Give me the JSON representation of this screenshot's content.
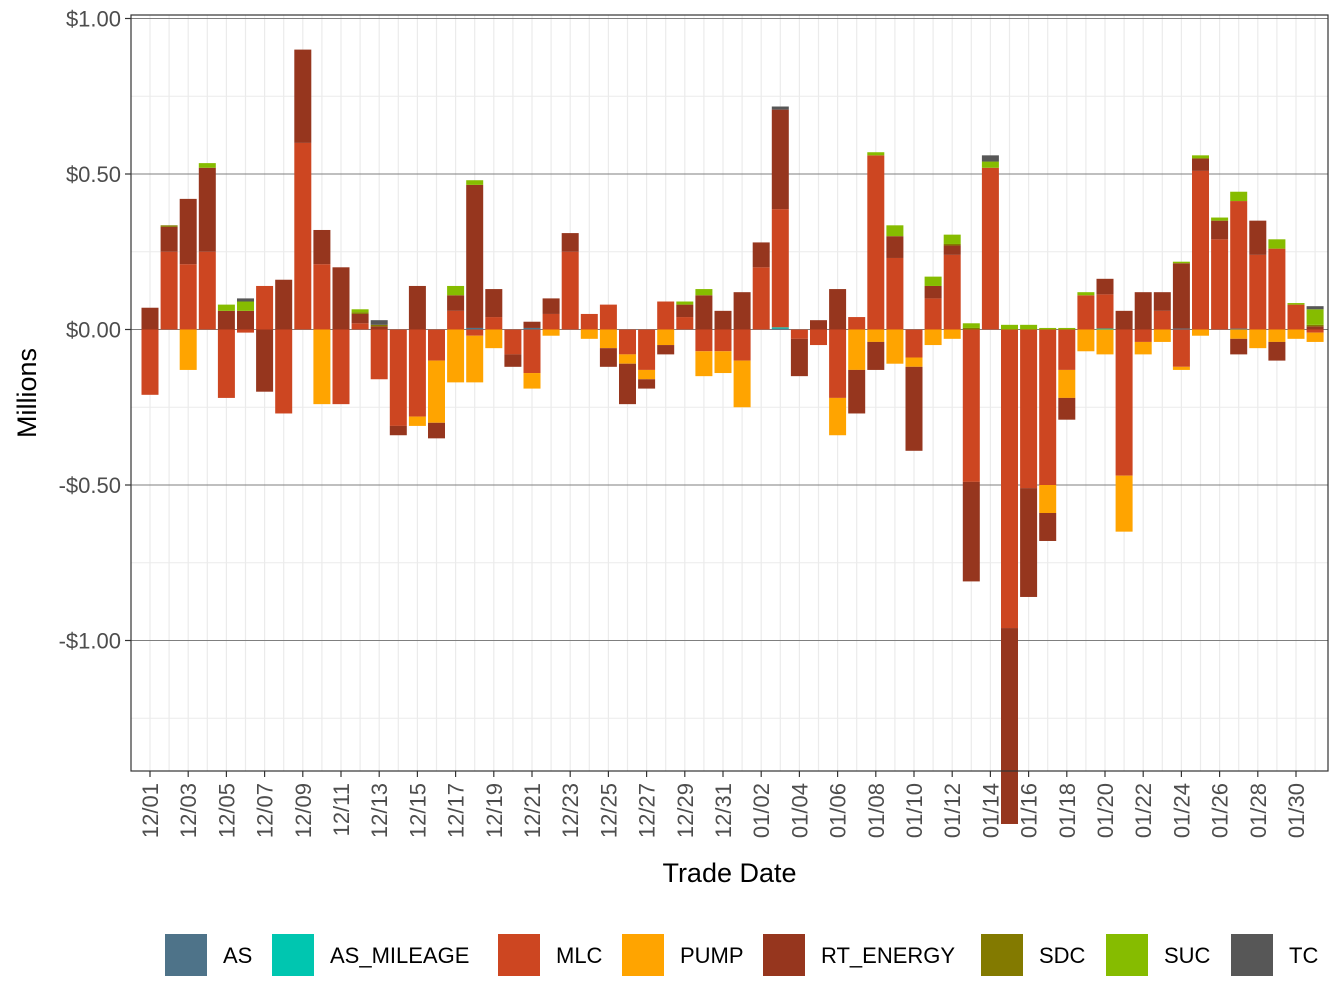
{
  "chart_data": {
    "type": "bar",
    "stacked": true,
    "title": "",
    "xlabel": "Trade Date",
    "ylabel": "Millions",
    "ylim": [
      -1.42,
      1.0
    ],
    "y_ticks": [
      1.0,
      0.5,
      0.0,
      -0.5,
      -1.0
    ],
    "y_tick_labels": [
      "$1.00",
      "$0.50",
      "$0.00",
      "-$0.50",
      "-$1.00"
    ],
    "legend_position": "bottom",
    "categories": [
      "12/01",
      "12/02",
      "12/03",
      "12/04",
      "12/05",
      "12/06",
      "12/07",
      "12/08",
      "12/09",
      "12/10",
      "12/11",
      "12/12",
      "12/13",
      "12/14",
      "12/15",
      "12/16",
      "12/17",
      "12/18",
      "12/19",
      "12/20",
      "12/21",
      "12/22",
      "12/23",
      "12/24",
      "12/25",
      "12/26",
      "12/27",
      "12/28",
      "12/29",
      "12/30",
      "12/31",
      "01/01",
      "01/02",
      "01/03",
      "01/04",
      "01/05",
      "01/06",
      "01/07",
      "01/08",
      "01/09",
      "01/10",
      "01/11",
      "01/12",
      "01/13",
      "01/14",
      "01/15",
      "01/16",
      "01/17",
      "01/18",
      "01/19",
      "01/20",
      "01/21",
      "01/22",
      "01/23",
      "01/24",
      "01/25",
      "01/26",
      "01/27",
      "01/28",
      "01/29",
      "01/30",
      "01/31"
    ],
    "x_tick_labels": [
      "12/01",
      "12/03",
      "12/05",
      "12/07",
      "12/09",
      "12/11",
      "12/13",
      "12/15",
      "12/17",
      "12/19",
      "12/21",
      "12/23",
      "12/25",
      "12/27",
      "12/29",
      "12/31",
      "01/02",
      "01/04",
      "01/06",
      "01/08",
      "01/10",
      "01/12",
      "01/14",
      "01/16",
      "01/18",
      "01/20",
      "01/22",
      "01/24",
      "01/26",
      "01/28",
      "01/30"
    ],
    "series": [
      {
        "name": "AS",
        "color": "#4e7389",
        "values": [
          0,
          0,
          0,
          0,
          0,
          0,
          0,
          0,
          0,
          0,
          0,
          0,
          0,
          0,
          0,
          0,
          0,
          0.005,
          0,
          0,
          0.005,
          0,
          0,
          0,
          0,
          0,
          0,
          0,
          0,
          0,
          0,
          0,
          0,
          0.003,
          0,
          0,
          0,
          0,
          0,
          0,
          0,
          0,
          0,
          0,
          0,
          0,
          0,
          0,
          0,
          0,
          0,
          0,
          0,
          0,
          0.003,
          0,
          0,
          0.003,
          0,
          0,
          0,
          0
        ]
      },
      {
        "name": "AS_MILEAGE",
        "color": "#00c6b0",
        "values": [
          0,
          0,
          0,
          0,
          0,
          0,
          0,
          0,
          0,
          0,
          0,
          0,
          0,
          0,
          0,
          0,
          0,
          0,
          0,
          0,
          0,
          0,
          0,
          0,
          0,
          0,
          0,
          0,
          0,
          0,
          0,
          0,
          0,
          0.004,
          0,
          0,
          0,
          0,
          0,
          0,
          0,
          0,
          0,
          0,
          0,
          0,
          0,
          0,
          0,
          0,
          0.003,
          0,
          0,
          0,
          0,
          0,
          0,
          0,
          0,
          0,
          0,
          0
        ]
      },
      {
        "name": "MLC",
        "color": "#cd4621",
        "values": [
          -0.21,
          0.25,
          0.21,
          0.25,
          -0.22,
          -0.01,
          0.14,
          -0.27,
          0.6,
          0.21,
          -0.24,
          0.02,
          -0.16,
          -0.31,
          -0.28,
          -0.1,
          0.06,
          -0.02,
          0.04,
          -0.08,
          -0.14,
          0.05,
          0.25,
          0.05,
          0.08,
          -0.08,
          -0.13,
          0.09,
          0.04,
          -0.07,
          -0.07,
          -0.1,
          0.2,
          0.38,
          -0.03,
          -0.05,
          -0.22,
          0.04,
          0.56,
          0.23,
          -0.09,
          0.1,
          0.24,
          -0.49,
          0.52,
          -0.96,
          -0.51,
          -0.5,
          -0.13,
          0.11,
          0.11,
          -0.47,
          -0.04,
          0.06,
          -0.12,
          0.51,
          0.29,
          0.41,
          0.24,
          0.26,
          0.08,
          -0.01
        ]
      },
      {
        "name": "PUMP",
        "color": "#ffa400",
        "values": [
          0,
          0,
          -0.13,
          0,
          0,
          0,
          0,
          0,
          0,
          -0.24,
          0,
          0,
          0,
          0,
          -0.03,
          -0.2,
          -0.17,
          -0.15,
          -0.06,
          0,
          -0.05,
          -0.02,
          0,
          -0.03,
          -0.06,
          -0.03,
          -0.03,
          -0.05,
          0,
          -0.08,
          -0.07,
          -0.15,
          0,
          0,
          0,
          0,
          -0.12,
          -0.13,
          -0.04,
          -0.11,
          -0.03,
          -0.05,
          -0.03,
          0,
          0,
          0,
          0,
          -0.09,
          -0.09,
          -0.07,
          -0.08,
          -0.18,
          -0.04,
          -0.04,
          -0.01,
          -0.02,
          0,
          -0.03,
          -0.06,
          -0.04,
          -0.03,
          -0.03
        ]
      },
      {
        "name": "RT_ENERGY",
        "color": "#96361e",
        "values": [
          0.07,
          0.08,
          0.21,
          0.27,
          0.06,
          0.06,
          -0.2,
          0.16,
          0.3,
          0.11,
          0.2,
          0.03,
          0.01,
          -0.03,
          0.14,
          -0.05,
          0.05,
          0.46,
          0.09,
          -0.04,
          0.02,
          0.05,
          0.06,
          0,
          -0.06,
          -0.13,
          -0.03,
          -0.03,
          0.04,
          0.11,
          0.06,
          0.12,
          0.08,
          0.32,
          -0.12,
          0.03,
          0.13,
          -0.14,
          -0.09,
          0.07,
          -0.27,
          0.04,
          0.03,
          -0.32,
          0,
          -0.63,
          -0.35,
          -0.09,
          -0.07,
          0,
          0.05,
          0.06,
          0.12,
          0.06,
          0.21,
          0.04,
          0.06,
          -0.05,
          0.11,
          -0.06,
          0,
          0.01
        ]
      },
      {
        "name": "SDC",
        "color": "#837a00",
        "values": [
          0,
          0.005,
          0,
          0,
          0,
          0,
          0,
          0,
          0,
          0,
          0,
          0.005,
          0.005,
          0,
          0,
          0,
          0,
          0,
          0,
          0,
          0,
          0,
          0,
          0,
          0,
          0,
          0,
          0,
          0,
          0,
          0,
          0,
          0,
          0,
          0,
          0,
          0,
          0,
          0,
          0,
          0,
          0,
          0.005,
          0.005,
          0,
          0,
          0,
          0,
          0,
          0,
          0,
          0,
          0,
          0,
          0,
          0,
          0,
          0,
          0,
          0,
          0,
          0.005
        ]
      },
      {
        "name": "SUC",
        "color": "#86bc00",
        "values": [
          0,
          0,
          0,
          0.015,
          0.02,
          0.03,
          0,
          0,
          0,
          0,
          0,
          0.01,
          0,
          0,
          0,
          0,
          0.03,
          0.015,
          0,
          0,
          0,
          0,
          0,
          0,
          0,
          0,
          0,
          0,
          0.01,
          0.02,
          0,
          0,
          0,
          0,
          0,
          0,
          0,
          0,
          0.01,
          0.035,
          0,
          0.03,
          0.03,
          0.015,
          0.02,
          0.015,
          0.015,
          0.005,
          0.005,
          0.01,
          0,
          0,
          0,
          0,
          0.005,
          0.01,
          0.01,
          0.03,
          0,
          0.03,
          0.005,
          0.05
        ]
      },
      {
        "name": "TC",
        "color": "#575757",
        "values": [
          0,
          0,
          0,
          0,
          0,
          0.01,
          0,
          0,
          0,
          0,
          0,
          0,
          0.015,
          0,
          0,
          0,
          0,
          0,
          0,
          0,
          0,
          0,
          0,
          0,
          0,
          0,
          0,
          0,
          0,
          0,
          0,
          0,
          0,
          0.01,
          0,
          0,
          0,
          0,
          0,
          0,
          0,
          0,
          0,
          0,
          0.02,
          0,
          0,
          0,
          0,
          0,
          0,
          0,
          0,
          0,
          0,
          0,
          0,
          0,
          0,
          0,
          0,
          0.01
        ]
      }
    ]
  }
}
